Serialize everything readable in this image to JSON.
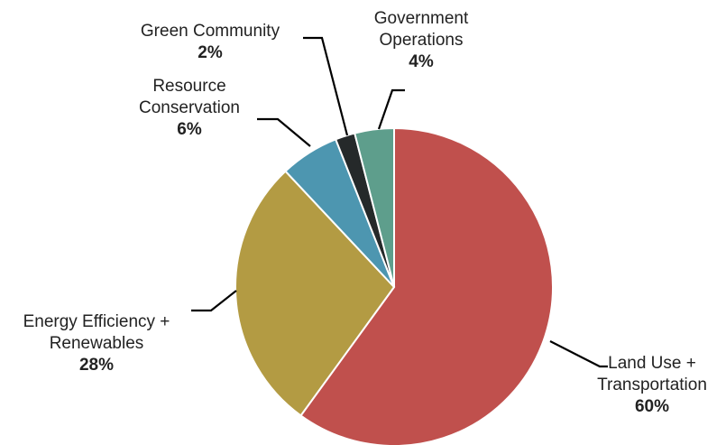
{
  "chart_data": {
    "type": "pie",
    "title": "",
    "start_angle_deg": 0,
    "direction": "clockwise",
    "slices": [
      {
        "name": "Land Use + Transportation",
        "label_lines": [
          "Land Use +",
          "Transportation"
        ],
        "percent_label": "60%",
        "value": 60,
        "color": "#C0504D"
      },
      {
        "name": "Energy Efficiency + Renewables",
        "label_lines": [
          "Energy Efficiency +",
          "Renewables"
        ],
        "percent_label": "28%",
        "value": 28,
        "color": "#B39B43"
      },
      {
        "name": "Resource Conservation",
        "label_lines": [
          "Resource",
          "Conservation"
        ],
        "percent_label": "6%",
        "value": 6,
        "color": "#4D96B0"
      },
      {
        "name": "Green Community",
        "label_lines": [
          "Green Community"
        ],
        "percent_label": "2%",
        "value": 2,
        "color": "#25292A"
      },
      {
        "name": "Government Operations",
        "label_lines": [
          "Government",
          "Operations"
        ],
        "percent_label": "4%",
        "value": 4,
        "color": "#5E9E8C"
      }
    ]
  }
}
